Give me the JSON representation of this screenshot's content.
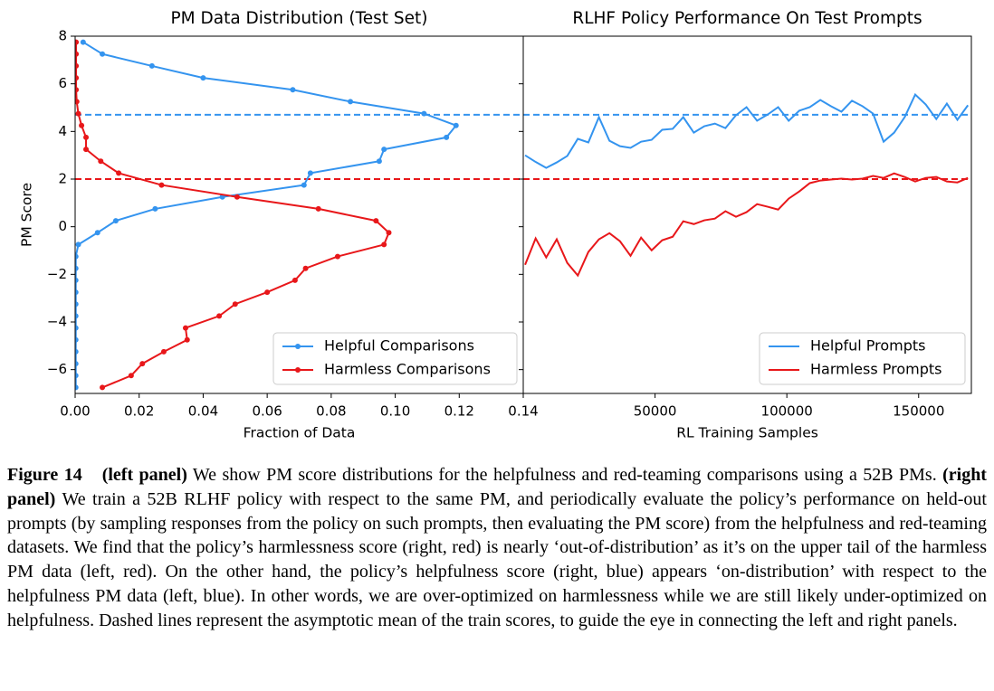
{
  "chart_data": [
    {
      "type": "line",
      "title": "PM Data Distribution (Test Set)",
      "x_label": "Fraction of Data",
      "y_label": "PM Score",
      "xlim": [
        0,
        0.14
      ],
      "ylim": [
        -7,
        8
      ],
      "xticks": [
        {
          "value": 0,
          "label": "0.00"
        },
        0.02,
        0.04,
        0.06,
        0.08,
        {
          "value": 0.1,
          "label": "0.10"
        },
        0.12,
        0.14
      ],
      "yticks": [
        {
          "value": -6,
          "label": "−6"
        },
        {
          "value": -4,
          "label": "−4"
        },
        {
          "value": -2,
          "label": "−2"
        },
        0,
        2,
        4,
        6,
        8
      ],
      "legend": "lower right",
      "reference_lines": [
        {
          "value": 4.7,
          "color": "#3494ef"
        },
        {
          "value": 2,
          "color": "#e8171a"
        }
      ],
      "series": [
        {
          "name": "Helpful Comparisons",
          "color": "#3494ef",
          "marker": true,
          "x": [
            0.0025,
            0.0085,
            0.024,
            0.04,
            0.068,
            0.086,
            0.109,
            0.119,
            0.116,
            0.0965,
            0.095,
            0.0735,
            0.0715,
            0.046,
            0.025,
            0.0127,
            0.007,
            0.001,
            0.0002,
            0.0002,
            0.0002,
            0.0002,
            0.0002,
            0.0002,
            0.0002,
            0.0002,
            0.0002,
            0.0002,
            0.0002,
            0.0002
          ],
          "values": [
            7.75,
            7.25,
            6.75,
            6.25,
            5.75,
            5.25,
            4.75,
            4.25,
            3.75,
            3.25,
            2.75,
            2.25,
            1.75,
            1.25,
            0.75,
            0.25,
            -0.25,
            -0.75,
            -1.25,
            -1.75,
            -2.25,
            -2.75,
            -3.25,
            -3.75,
            -4.25,
            -4.75,
            -5.25,
            -5.75,
            -6.25,
            -6.75
          ]
        },
        {
          "name": "Harmless Comparisons",
          "color": "#e8171a",
          "marker": true,
          "x": [
            0.0003,
            0.0003,
            0.0003,
            0.0003,
            0.0003,
            0.0005,
            0.001,
            0.002,
            0.0034,
            0.0034,
            0.008,
            0.0136,
            0.027,
            0.0506,
            0.076,
            0.094,
            0.098,
            0.0965,
            0.082,
            0.072,
            0.0687,
            0.06,
            0.05,
            0.045,
            0.0345,
            0.035,
            0.0277,
            0.021,
            0.0175,
            0.0085
          ],
          "values": [
            7.75,
            7.25,
            6.75,
            6.25,
            5.75,
            5.25,
            4.75,
            4.25,
            3.75,
            3.25,
            2.75,
            2.25,
            1.75,
            1.25,
            0.75,
            0.25,
            -0.25,
            -0.75,
            -1.25,
            -1.75,
            -2.25,
            -2.75,
            -3.25,
            -3.75,
            -4.25,
            -4.75,
            -5.25,
            -5.75,
            -6.25,
            -6.75
          ]
        }
      ]
    },
    {
      "type": "line",
      "title": "RLHF Policy Performance On Test Prompts",
      "x_label": "RL Training Samples",
      "xlim": [
        0,
        170000
      ],
      "ylim": [
        -7,
        8
      ],
      "xticks": [
        50000,
        100000,
        150000
      ],
      "yticks": [
        -6,
        -4,
        -2,
        0,
        2,
        4,
        6,
        8
      ],
      "ytick_labels": false,
      "legend": "lower right",
      "reference_lines": [
        {
          "value": 4.7,
          "color": "#3494ef"
        },
        {
          "value": 2,
          "color": "#e8171a"
        }
      ],
      "x": [
        700,
        4700,
        8700,
        12700,
        16700,
        20700,
        24700,
        28700,
        32700,
        36700,
        40700,
        44700,
        48700,
        52700,
        56700,
        60700,
        64700,
        68700,
        72700,
        76700,
        80700,
        84700,
        88700,
        92700,
        96700,
        100700,
        104700,
        108700,
        112700,
        116700,
        120700,
        124700,
        128700,
        132700,
        136700,
        140700,
        144700,
        148700,
        152700,
        156700,
        160700,
        164700,
        168700
      ],
      "series": [
        {
          "name": "Helpful Prompts",
          "color": "#3494ef",
          "marker": false,
          "values": [
            3.0,
            2.72,
            2.47,
            2.7,
            2.97,
            3.69,
            3.54,
            4.6,
            3.61,
            3.38,
            3.31,
            3.57,
            3.65,
            4.07,
            4.11,
            4.6,
            3.95,
            4.22,
            4.33,
            4.14,
            4.68,
            5.02,
            4.45,
            4.71,
            5.02,
            4.45,
            4.87,
            5.02,
            5.32,
            5.06,
            4.83,
            5.29,
            5.06,
            4.75,
            3.57,
            3.95,
            4.6,
            5.55,
            5.13,
            4.52,
            5.17,
            4.49,
            5.1
          ]
        },
        {
          "name": "Harmless Prompts",
          "color": "#e8171a",
          "marker": false,
          "values": [
            -1.6,
            -0.49,
            -1.29,
            -0.53,
            -1.52,
            -2.05,
            -1.06,
            -0.53,
            -0.27,
            -0.61,
            -1.22,
            -0.46,
            -0.99,
            -0.57,
            -0.42,
            0.23,
            0.11,
            0.27,
            0.34,
            0.65,
            0.42,
            0.61,
            0.95,
            0.84,
            0.72,
            1.18,
            1.48,
            1.83,
            1.94,
            1.98,
            2.02,
            1.98,
            2.02,
            2.13,
            2.05,
            2.24,
            2.09,
            1.9,
            2.05,
            2.09,
            1.9,
            1.86,
            2.05
          ]
        }
      ]
    }
  ],
  "caption": {
    "label": "Figure 14",
    "runs": [
      {
        "text": "(left panel)",
        "bold": true
      },
      {
        "text": " We show PM score distributions for the helpfulness and red-teaming comparisons using a 52B PMs. ",
        "bold": false
      },
      {
        "text": "(right panel)",
        "bold": true
      },
      {
        "text": " We train a 52B RLHF policy with respect to the same PM, and periodically evaluate the policy’s performance on held-out prompts (by sampling responses from the policy on such prompts, then evaluating the PM score) from the helpfulness and red-teaming datasets. We find that the policy’s harmlessness score (right, red) is nearly ‘out-of-distribution’ as it’s on the upper tail of the harmless PM data (left, red). On the other hand, the policy’s helpfulness score (right, blue) appears ‘on-distribution’ with respect to the helpfulness PM data (left, blue). In other words, we are over-optimized on harmlessness while we are still likely under-optimized on helpfulness. Dashed lines represent the asymptotic mean of the train scores, to guide the eye in connecting the left and right panels.",
        "bold": false
      }
    ]
  }
}
